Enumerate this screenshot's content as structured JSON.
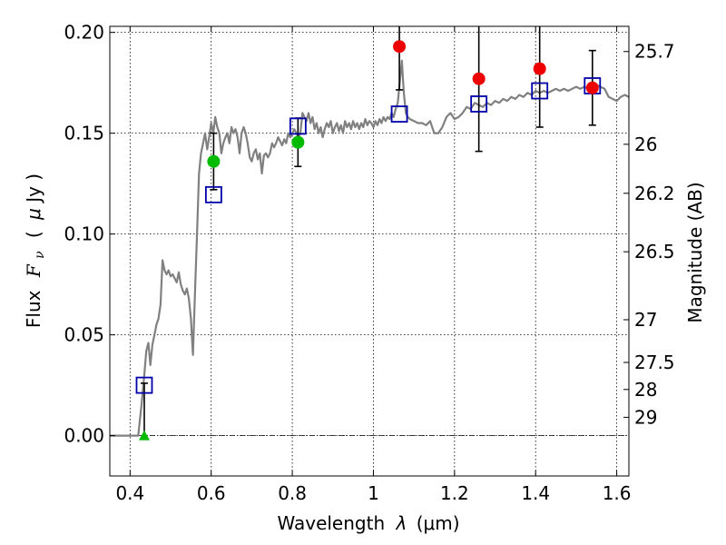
{
  "chart_data": {
    "type": "scatter",
    "xlabel_text": "Wavelength",
    "xlabel_symbol": "λ",
    "xlabel_unit": "(μm)",
    "ylabel_text": "Flux",
    "ylabel_symbol": "F",
    "ylabel_subscript": "ν",
    "ylabel_unit_open": "(",
    "ylabel_unit_mu": "μ",
    "ylabel_unit_rest": "Jy )",
    "y2label": "Magnitude (AB)",
    "xlim": [
      0.35,
      1.63
    ],
    "ylim": [
      -0.02,
      0.203
    ],
    "grid": true,
    "xticks": [
      0.4,
      0.6,
      0.8,
      1.0,
      1.2,
      1.4,
      1.6
    ],
    "xtick_labels": [
      "0.4",
      "0.6",
      "0.8",
      "1",
      "1.2",
      "1.4",
      "1.6"
    ],
    "yticks": [
      0.0,
      0.05,
      0.1,
      0.15,
      0.2
    ],
    "ytick_labels": [
      "0.00",
      "0.05",
      "0.10",
      "0.15",
      "0.20"
    ],
    "mag_ticks": [
      {
        "label": "25.7",
        "flux": 0.1905
      },
      {
        "label": "26",
        "flux": 0.1445
      },
      {
        "label": "26.2",
        "flux": 0.1202
      },
      {
        "label": "26.5",
        "flux": 0.0912
      },
      {
        "label": "27",
        "flux": 0.0575
      },
      {
        "label": "27.5",
        "flux": 0.0363
      },
      {
        "label": "28",
        "flux": 0.0229
      },
      {
        "label": "29",
        "flux": 0.0091
      }
    ],
    "colors": {
      "model": "#808080",
      "green": "#00bb00",
      "red": "#ee0000",
      "square": "#0000aa",
      "errorbar": "#000000",
      "grid": "#000000"
    },
    "model_spectrum": [
      [
        0.35,
        0.0
      ],
      [
        0.41,
        0.0
      ],
      [
        0.42,
        0.0
      ],
      [
        0.428,
        0.015
      ],
      [
        0.435,
        0.03
      ],
      [
        0.44,
        0.042
      ],
      [
        0.445,
        0.046
      ],
      [
        0.45,
        0.035
      ],
      [
        0.455,
        0.045
      ],
      [
        0.46,
        0.05
      ],
      [
        0.465,
        0.055
      ],
      [
        0.47,
        0.058
      ],
      [
        0.475,
        0.065
      ],
      [
        0.48,
        0.087
      ],
      [
        0.485,
        0.082
      ],
      [
        0.49,
        0.08
      ],
      [
        0.495,
        0.082
      ],
      [
        0.5,
        0.079
      ],
      [
        0.505,
        0.08
      ],
      [
        0.51,
        0.078
      ],
      [
        0.515,
        0.076
      ],
      [
        0.52,
        0.081
      ],
      [
        0.525,
        0.075
      ],
      [
        0.53,
        0.072
      ],
      [
        0.535,
        0.07
      ],
      [
        0.54,
        0.073
      ],
      [
        0.545,
        0.068
      ],
      [
        0.55,
        0.058
      ],
      [
        0.555,
        0.04
      ],
      [
        0.56,
        0.07
      ],
      [
        0.565,
        0.1
      ],
      [
        0.57,
        0.13
      ],
      [
        0.575,
        0.14
      ],
      [
        0.58,
        0.145
      ],
      [
        0.585,
        0.15
      ],
      [
        0.59,
        0.142
      ],
      [
        0.595,
        0.148
      ],
      [
        0.6,
        0.155
      ],
      [
        0.605,
        0.15
      ],
      [
        0.61,
        0.158
      ],
      [
        0.615,
        0.153
      ],
      [
        0.62,
        0.15
      ],
      [
        0.625,
        0.14
      ],
      [
        0.63,
        0.145
      ],
      [
        0.635,
        0.148
      ],
      [
        0.64,
        0.15
      ],
      [
        0.645,
        0.145
      ],
      [
        0.65,
        0.153
      ],
      [
        0.655,
        0.15
      ],
      [
        0.66,
        0.152
      ],
      [
        0.665,
        0.148
      ],
      [
        0.67,
        0.14
      ],
      [
        0.675,
        0.15
      ],
      [
        0.68,
        0.153
      ],
      [
        0.685,
        0.15
      ],
      [
        0.69,
        0.145
      ],
      [
        0.695,
        0.138
      ],
      [
        0.7,
        0.136
      ],
      [
        0.705,
        0.14
      ],
      [
        0.71,
        0.142
      ],
      [
        0.715,
        0.137
      ],
      [
        0.72,
        0.14
      ],
      [
        0.725,
        0.13
      ],
      [
        0.73,
        0.139
      ],
      [
        0.735,
        0.14
      ],
      [
        0.74,
        0.138
      ],
      [
        0.745,
        0.14
      ],
      [
        0.75,
        0.145
      ],
      [
        0.755,
        0.143
      ],
      [
        0.76,
        0.145
      ],
      [
        0.765,
        0.148
      ],
      [
        0.77,
        0.146
      ],
      [
        0.775,
        0.144
      ],
      [
        0.78,
        0.147
      ],
      [
        0.785,
        0.145
      ],
      [
        0.79,
        0.15
      ],
      [
        0.795,
        0.148
      ],
      [
        0.8,
        0.15
      ],
      [
        0.805,
        0.152
      ],
      [
        0.81,
        0.15
      ],
      [
        0.815,
        0.148
      ],
      [
        0.82,
        0.15
      ],
      [
        0.825,
        0.16
      ],
      [
        0.83,
        0.158
      ],
      [
        0.835,
        0.156
      ],
      [
        0.84,
        0.16
      ],
      [
        0.845,
        0.155
      ],
      [
        0.85,
        0.158
      ],
      [
        0.855,
        0.152
      ],
      [
        0.86,
        0.155
      ],
      [
        0.865,
        0.15
      ],
      [
        0.87,
        0.153
      ],
      [
        0.875,
        0.148
      ],
      [
        0.88,
        0.152
      ],
      [
        0.885,
        0.155
      ],
      [
        0.89,
        0.153
      ],
      [
        0.895,
        0.156
      ],
      [
        0.9,
        0.15
      ],
      [
        0.905,
        0.153
      ],
      [
        0.91,
        0.155
      ],
      [
        0.915,
        0.151
      ],
      [
        0.92,
        0.154
      ],
      [
        0.925,
        0.15
      ],
      [
        0.93,
        0.156
      ],
      [
        0.935,
        0.153
      ],
      [
        0.94,
        0.155
      ],
      [
        0.945,
        0.152
      ],
      [
        0.95,
        0.156
      ],
      [
        0.955,
        0.153
      ],
      [
        0.96,
        0.155
      ],
      [
        0.965,
        0.152
      ],
      [
        0.97,
        0.155
      ],
      [
        0.975,
        0.153
      ],
      [
        0.98,
        0.157
      ],
      [
        0.985,
        0.154
      ],
      [
        0.99,
        0.156
      ],
      [
        0.995,
        0.155
      ],
      [
        1.0,
        0.153
      ],
      [
        1.005,
        0.156
      ],
      [
        1.01,
        0.154
      ],
      [
        1.015,
        0.157
      ],
      [
        1.02,
        0.155
      ],
      [
        1.025,
        0.158
      ],
      [
        1.03,
        0.156
      ],
      [
        1.035,
        0.158
      ],
      [
        1.04,
        0.157
      ],
      [
        1.045,
        0.16
      ],
      [
        1.05,
        0.158
      ],
      [
        1.055,
        0.162
      ],
      [
        1.06,
        0.165
      ],
      [
        1.065,
        0.175
      ],
      [
        1.07,
        0.186
      ],
      [
        1.075,
        0.17
      ],
      [
        1.08,
        0.16
      ],
      [
        1.085,
        0.158
      ],
      [
        1.09,
        0.157
      ],
      [
        1.1,
        0.156
      ],
      [
        1.11,
        0.155
      ],
      [
        1.12,
        0.155
      ],
      [
        1.13,
        0.154
      ],
      [
        1.14,
        0.156
      ],
      [
        1.15,
        0.15
      ],
      [
        1.16,
        0.15
      ],
      [
        1.17,
        0.153
      ],
      [
        1.18,
        0.158
      ],
      [
        1.19,
        0.16
      ],
      [
        1.2,
        0.157
      ],
      [
        1.21,
        0.158
      ],
      [
        1.22,
        0.16
      ],
      [
        1.23,
        0.163
      ],
      [
        1.24,
        0.162
      ],
      [
        1.25,
        0.165
      ],
      [
        1.26,
        0.164
      ],
      [
        1.27,
        0.163
      ],
      [
        1.28,
        0.165
      ],
      [
        1.29,
        0.164
      ],
      [
        1.3,
        0.166
      ],
      [
        1.31,
        0.165
      ],
      [
        1.32,
        0.167
      ],
      [
        1.33,
        0.166
      ],
      [
        1.34,
        0.168
      ],
      [
        1.35,
        0.167
      ],
      [
        1.36,
        0.169
      ],
      [
        1.37,
        0.168
      ],
      [
        1.38,
        0.17
      ],
      [
        1.39,
        0.169
      ],
      [
        1.4,
        0.171
      ],
      [
        1.41,
        0.17
      ],
      [
        1.42,
        0.171
      ],
      [
        1.43,
        0.17
      ],
      [
        1.44,
        0.171
      ],
      [
        1.45,
        0.172
      ],
      [
        1.46,
        0.171
      ],
      [
        1.47,
        0.172
      ],
      [
        1.48,
        0.171
      ],
      [
        1.49,
        0.172
      ],
      [
        1.5,
        0.173
      ],
      [
        1.51,
        0.172
      ],
      [
        1.52,
        0.173
      ],
      [
        1.53,
        0.172
      ],
      [
        1.54,
        0.173
      ],
      [
        1.55,
        0.174
      ],
      [
        1.56,
        0.173
      ],
      [
        1.57,
        0.172
      ],
      [
        1.58,
        0.168
      ],
      [
        1.59,
        0.167
      ],
      [
        1.6,
        0.166
      ],
      [
        1.61,
        0.168
      ],
      [
        1.62,
        0.169
      ],
      [
        1.63,
        0.168
      ]
    ],
    "observed": [
      {
        "x": 0.435,
        "y": 0.0,
        "err_lo": 0.0,
        "err_hi": 0.026,
        "color": "green",
        "marker": "triangle"
      },
      {
        "x": 0.606,
        "y": 0.136,
        "err_lo": 0.014,
        "err_hi": 0.014,
        "color": "green",
        "marker": "circle"
      },
      {
        "x": 0.814,
        "y": 0.1455,
        "err_lo": 0.012,
        "err_hi": 0.012,
        "color": "green",
        "marker": "circle"
      },
      {
        "x": 1.064,
        "y": 0.193,
        "err_lo": 0.0215,
        "err_hi": 0.0215,
        "color": "red",
        "marker": "circle"
      },
      {
        "x": 1.26,
        "y": 0.177,
        "err_lo": 0.036,
        "err_hi": 0.036,
        "color": "red",
        "marker": "circle"
      },
      {
        "x": 1.41,
        "y": 0.182,
        "err_lo": 0.029,
        "err_hi": 0.029,
        "color": "red",
        "marker": "circle"
      },
      {
        "x": 1.54,
        "y": 0.1725,
        "err_lo": 0.0185,
        "err_hi": 0.0185,
        "color": "red",
        "marker": "circle"
      }
    ],
    "model_photometry": [
      {
        "x": 0.435,
        "y": 0.025
      },
      {
        "x": 0.606,
        "y": 0.1195
      },
      {
        "x": 0.814,
        "y": 0.1535
      },
      {
        "x": 1.064,
        "y": 0.1595
      },
      {
        "x": 1.26,
        "y": 0.1645
      },
      {
        "x": 1.41,
        "y": 0.171
      },
      {
        "x": 1.54,
        "y": 0.1735
      }
    ]
  }
}
